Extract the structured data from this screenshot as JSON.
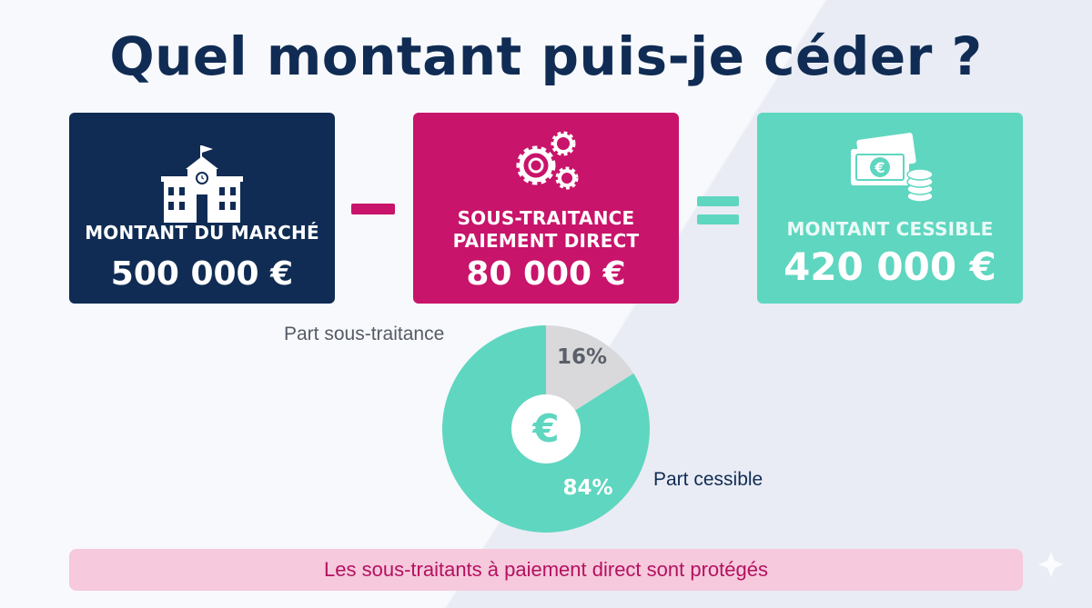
{
  "title": "Quel montant puis-je céder ?",
  "cards": {
    "market": {
      "label": "MONTANT DU MARCHÉ",
      "value": "500 000 €",
      "color": "#102c54",
      "icon": "school-building-icon"
    },
    "subcontracting": {
      "label_line1": "SOUS-TRAITANCE",
      "label_line2": "PAIEMENT DIRECT",
      "value": "80 000 €",
      "color": "#c8146a",
      "icon": "gears-icon"
    },
    "assignable": {
      "label": "MONTANT CESSIBLE",
      "value": "420 000 €",
      "color": "#5fd6c0",
      "icon": "cash-coins-icon"
    }
  },
  "pie": {
    "slices": [
      {
        "legend": "Part sous-traitance",
        "label": "16%",
        "percent": 16,
        "color": "#d9d9dc"
      },
      {
        "legend": "Part cessible",
        "label": "84%",
        "percent": 84,
        "color": "#5fd6c0"
      }
    ],
    "center_symbol": "€"
  },
  "banner": {
    "text": "Les sous-traitants à paiement direct sont protégés",
    "color": "#f6c9dd"
  }
}
